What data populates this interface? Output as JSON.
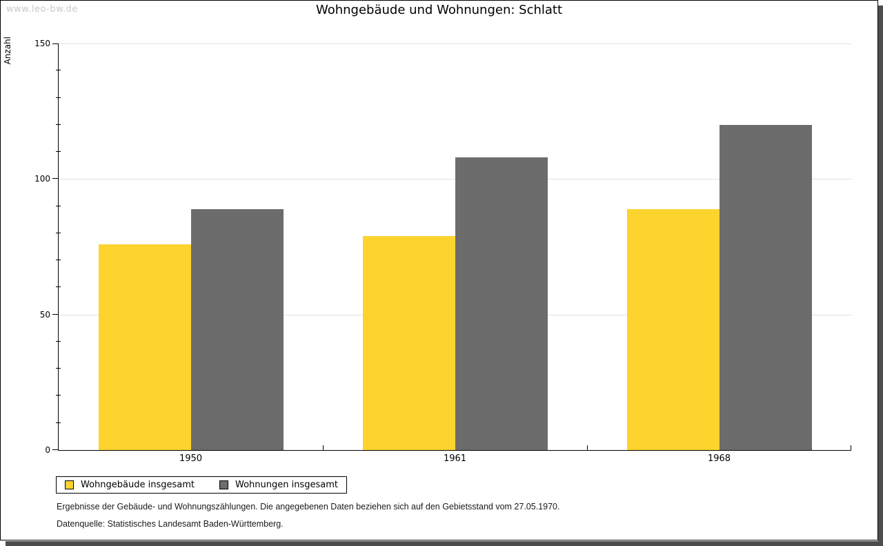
{
  "watermark": "www.leo-bw.de",
  "title": "Wohngebäude und Wohnungen: Schlatt",
  "chart_data": {
    "type": "bar",
    "title": "Wohngebäude und Wohnungen: Schlatt",
    "categories": [
      "1950",
      "1961",
      "1968"
    ],
    "series": [
      {
        "name": "Wohngebäude insgesamt",
        "color": "#FDD32E",
        "values": [
          76,
          79,
          89
        ]
      },
      {
        "name": "Wohnungen insgesamt",
        "color": "#6C6C6C",
        "values": [
          89,
          108,
          120
        ]
      }
    ],
    "xlabel": "",
    "ylabel": "Anzahl",
    "ylim": [
      0,
      150
    ],
    "yticks": [
      0,
      50,
      100,
      150
    ],
    "minor_tick_step": 10,
    "grid": true,
    "legend_position": "bottom-left"
  },
  "footnotes": [
    "Ergebnisse der Gebäude- und Wohnungszählungen. Die angegebenen Daten beziehen sich auf den Gebietsstand vom 27.05.1970.",
    "Datenquelle: Statistisches Landesamt Baden-Württemberg."
  ]
}
